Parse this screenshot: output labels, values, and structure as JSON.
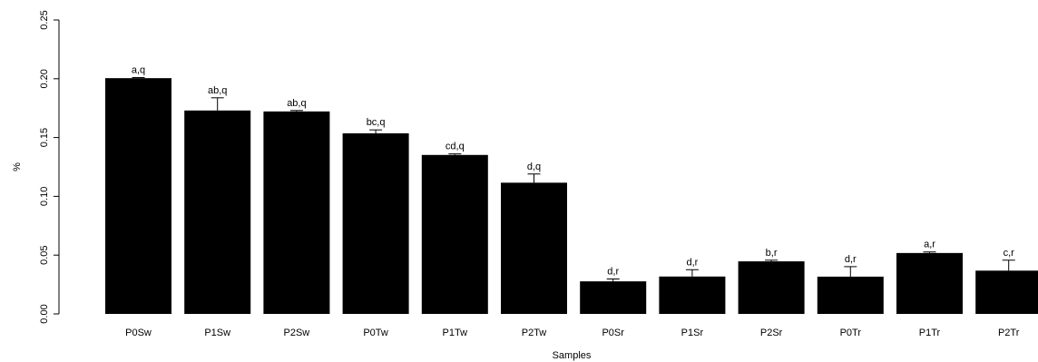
{
  "chart_data": {
    "type": "bar",
    "title": "",
    "xlabel": "Samples",
    "ylabel": "%",
    "ylim": [
      0,
      0.25
    ],
    "y_ticks": [
      "0.00",
      "0.05",
      "0.10",
      "0.15",
      "0.20",
      "0.25"
    ],
    "grid": false,
    "bar_color": "#000000",
    "categories": [
      "P0Sw",
      "P1Sw",
      "P2Sw",
      "P0Tw",
      "P1Tw",
      "P2Tw",
      "P0Sr",
      "P1Sr",
      "P2Sr",
      "P0Tr",
      "P1Tr",
      "P2Tr"
    ],
    "values": [
      0.2005,
      0.173,
      0.1722,
      0.1536,
      0.1352,
      0.1116,
      0.0277,
      0.0318,
      0.0447,
      0.0317,
      0.0518,
      0.0368
    ],
    "errors": [
      0.0005,
      0.0108,
      0.0008,
      0.0029,
      0.0009,
      0.0074,
      0.002,
      0.0058,
      0.001,
      0.0085,
      0.0009,
      0.0089
    ],
    "annotations": [
      "a,q",
      "ab,q",
      "ab,q",
      "bc,q",
      "cd,q",
      "d,q",
      "d,r",
      "d,r",
      "b,r",
      "d,r",
      "a,r",
      "c,r"
    ]
  }
}
